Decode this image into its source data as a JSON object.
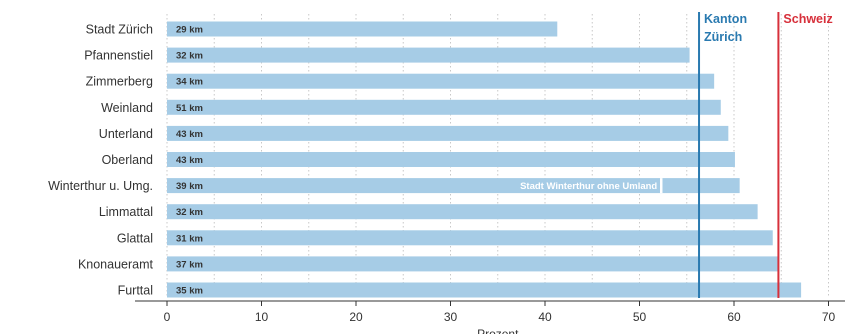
{
  "chart_data": {
    "type": "bar",
    "orientation": "horizontal",
    "xlabel": "Prozent",
    "xlim": [
      -3.5,
      72
    ],
    "xticks": [
      0,
      10,
      20,
      30,
      40,
      50,
      60,
      70
    ],
    "grid": "vertical dotted lines every 5",
    "bar_color": "#a6cce6",
    "categories": [
      "Stadt Zürich",
      "Pfannenstiel",
      "Zimmerberg",
      "Weinland",
      "Unterland",
      "Oberland",
      "Winterthur u. Umg.",
      "Limmattal",
      "Glattal",
      "Knonaueramt",
      "Furttal"
    ],
    "values": [
      41.3,
      55.3,
      57.9,
      58.6,
      59.4,
      60.1,
      60.6,
      62.5,
      64.1,
      64.7,
      67.1
    ],
    "bar_labels": [
      "29 km",
      "32 km",
      "34 km",
      "51 km",
      "43 km",
      "43 km",
      "39 km",
      "32 km",
      "31 km",
      "37 km",
      "35 km"
    ],
    "sub_marker": {
      "category": "Winterthur u. Umg.",
      "value": 52.3,
      "label": "Stadt Winterthur ohne Umland"
    },
    "reference_lines": [
      {
        "label_lines": [
          "Kanton",
          "Zürich"
        ],
        "value": 56.3,
        "color": "#2a7ab0"
      },
      {
        "label_lines": [
          "Schweiz"
        ],
        "value": 64.7,
        "color": "#d7303b"
      }
    ]
  }
}
